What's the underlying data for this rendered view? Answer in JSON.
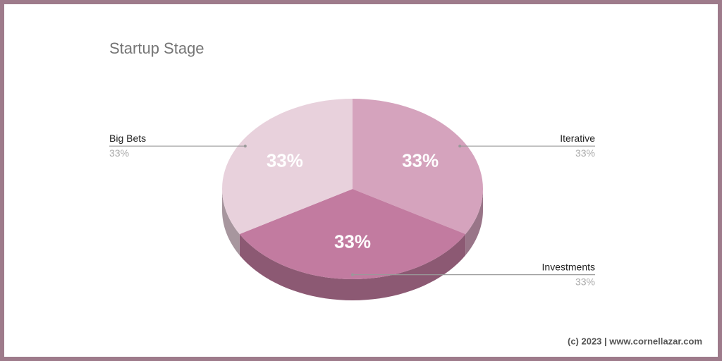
{
  "chart_data": {
    "type": "pie3d",
    "title": "Startup Stage",
    "categories": [
      "Iterative",
      "Investments",
      "Big Bets"
    ],
    "values": [
      33,
      33,
      33
    ],
    "value_labels": [
      "33%",
      "33%",
      "33%"
    ],
    "colors": [
      "#d5a3bd",
      "#c27ba0",
      "#e8d1dc"
    ],
    "annotation": "(c) 2023 | www.cornellazar.com"
  }
}
